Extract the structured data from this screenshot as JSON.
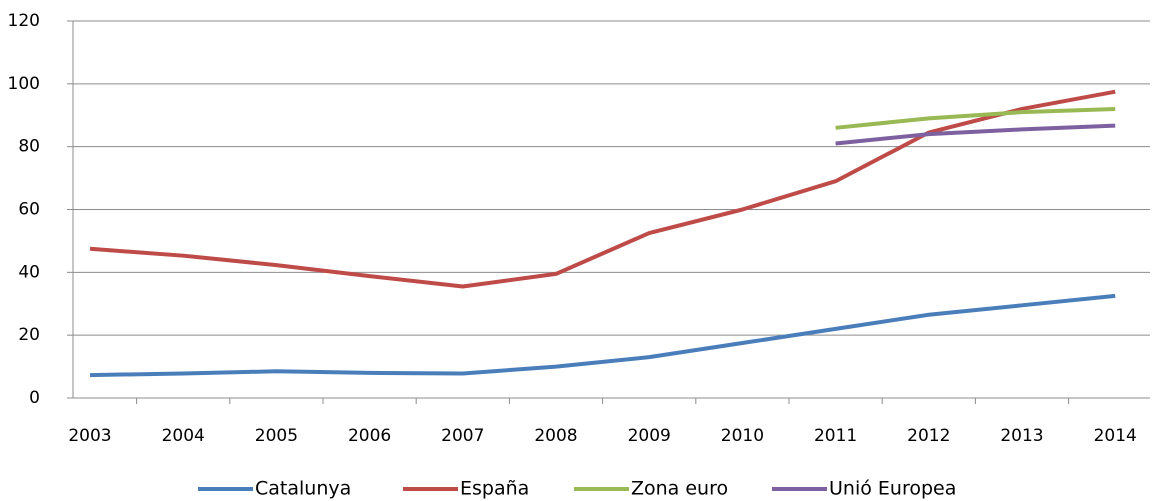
{
  "chart_data": {
    "type": "line",
    "categories": [
      "2003",
      "2004",
      "2005",
      "2006",
      "2007",
      "2008",
      "2009",
      "2010",
      "2011",
      "2012",
      "2013",
      "2014"
    ],
    "series": [
      {
        "name": "Catalunya",
        "color": "#4a7ebb",
        "values": [
          7.3,
          7.8,
          8.5,
          8,
          7.8,
          10,
          13,
          17.5,
          22,
          26.5,
          29.5,
          32.5
        ]
      },
      {
        "name": "España",
        "color": "#be4b48",
        "values": [
          47.5,
          45.3,
          42.3,
          38.8,
          35.5,
          39.5,
          52.5,
          60,
          69,
          84.5,
          92,
          97.5
        ]
      },
      {
        "name": "Zona euro",
        "color": "#98b954",
        "values": [
          null,
          null,
          null,
          null,
          null,
          null,
          null,
          null,
          86,
          89,
          91,
          92
        ]
      },
      {
        "name": "Unió Europea",
        "color": "#7d60a0",
        "values": [
          null,
          null,
          null,
          null,
          null,
          null,
          null,
          null,
          81,
          84,
          85.5,
          86.7
        ]
      }
    ],
    "ylim": [
      0,
      120
    ],
    "yticks": [
      0,
      20,
      40,
      60,
      80,
      100,
      120
    ],
    "grid": true,
    "legend": "bottom"
  }
}
